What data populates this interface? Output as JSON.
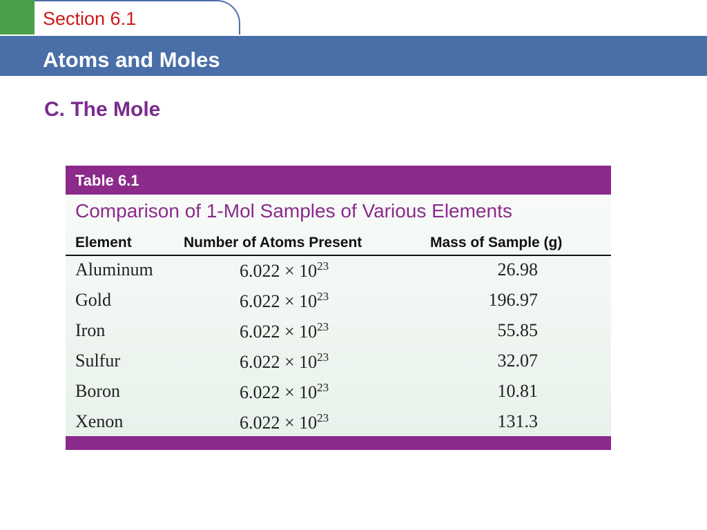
{
  "header": {
    "section": "Section 6.1",
    "title": "Atoms and Moles"
  },
  "heading": "C. The Mole",
  "table": {
    "label": "Table 6.1",
    "caption": "Comparison of 1-Mol Samples of Various Elements",
    "columns": [
      "Element",
      "Number of Atoms Present",
      "Mass of Sample (g)"
    ],
    "rows": [
      [
        {
          "name": "Aluminum"
        },
        {
          "base": "6.022 × 10",
          "exponent": "23"
        },
        {
          "mass": "26.98"
        }
      ],
      [
        {
          "name": "Gold"
        },
        {
          "base": "6.022 × 10",
          "exponent": "23"
        },
        {
          "mass": "196.97"
        }
      ],
      [
        {
          "name": "Iron"
        },
        {
          "base": "6.022 × 10",
          "exponent": "23"
        },
        {
          "mass": "55.85"
        }
      ],
      [
        {
          "name": "Sulfur"
        },
        {
          "base": "6.022 × 10",
          "exponent": "23"
        },
        {
          "mass": "32.07"
        }
      ],
      [
        {
          "name": "Boron"
        },
        {
          "base": "6.022 × 10",
          "exponent": "23"
        },
        {
          "mass": "10.81"
        }
      ],
      [
        {
          "name": "Xenon"
        },
        {
          "base": "6.022 × 10",
          "exponent": "23"
        },
        {
          "mass": "131.3"
        }
      ]
    ]
  }
}
